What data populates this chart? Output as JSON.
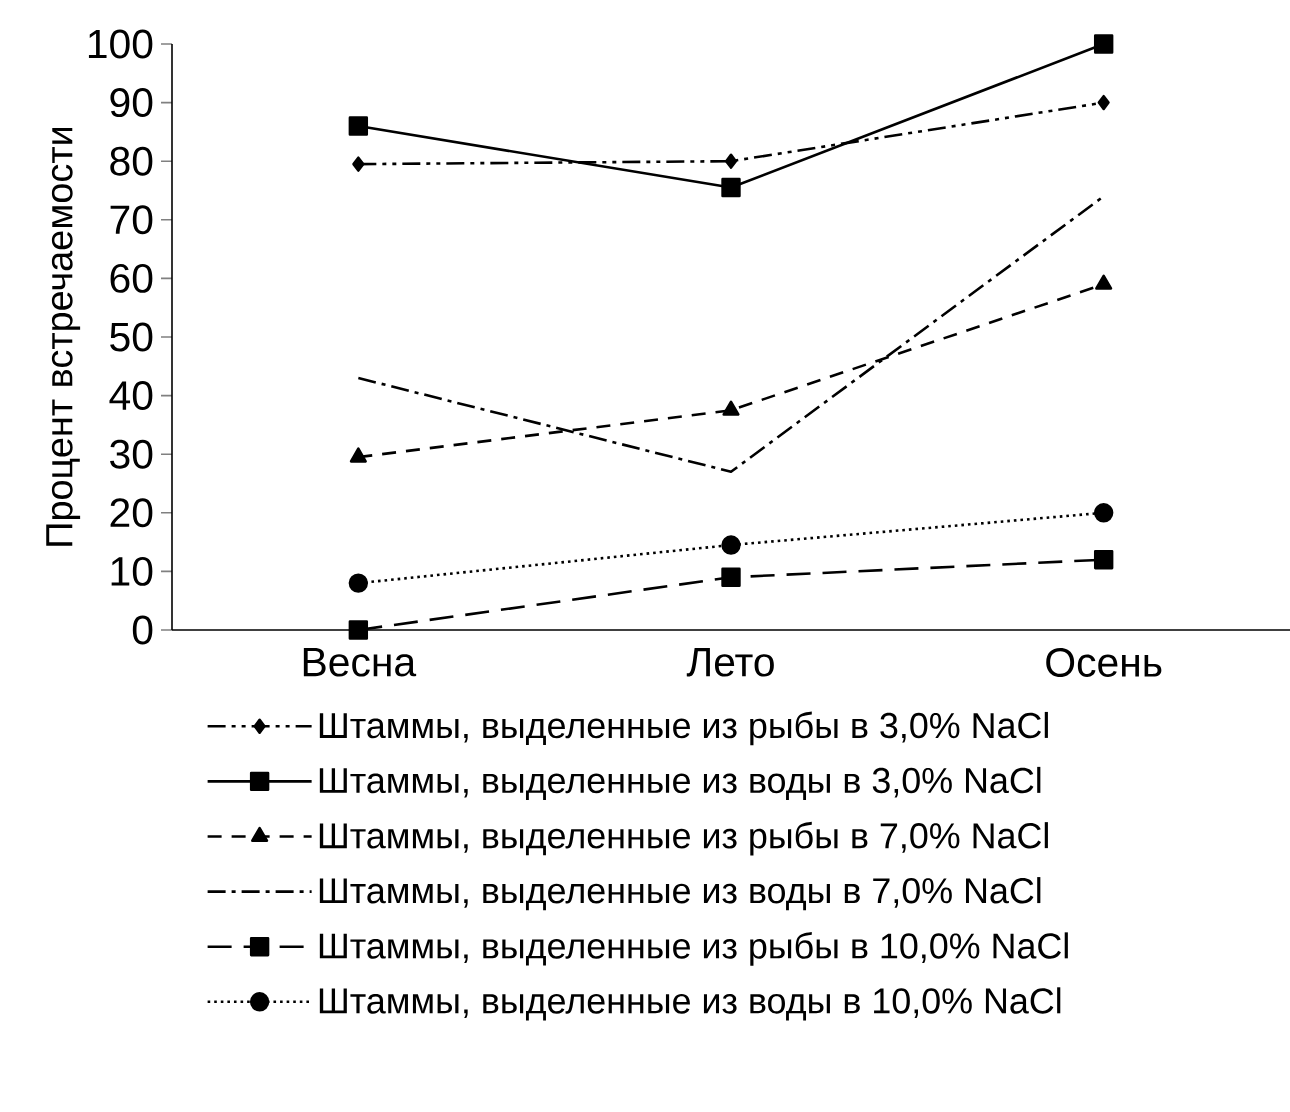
{
  "chart_data": {
    "type": "line",
    "ylabel": "Процент встречаемости",
    "categories": [
      "Весна",
      "Лето",
      "Осень"
    ],
    "ylim": [
      0,
      100
    ],
    "yticks": [
      0,
      10,
      20,
      30,
      40,
      50,
      60,
      70,
      80,
      90,
      100
    ],
    "legend": "bottom",
    "grid": false,
    "series": [
      {
        "name": "Штаммы, выделенные из рыбы в 3,0% NaCl",
        "color": "#000000",
        "marker": "diamond",
        "line_style": "dashdotdot",
        "values": [
          79.5,
          80,
          90
        ]
      },
      {
        "name": "Штаммы, выделенные из воды в 3,0% NaCl",
        "color": "#000000",
        "marker": "square",
        "line_style": "solid",
        "values": [
          86,
          75.5,
          100
        ]
      },
      {
        "name": "Штаммы, выделенные из рыбы в 7,0% NaCl",
        "color": "#000000",
        "marker": "triangle",
        "line_style": "dashed",
        "values": [
          29.5,
          37.5,
          59
        ]
      },
      {
        "name": "Штаммы, выделенные из воды в 7,0% NaCl",
        "color": "#000000",
        "marker": "none",
        "line_style": "dashdot",
        "values": [
          43,
          27,
          74
        ]
      },
      {
        "name": "Штаммы, выделенные из рыбы в 10,0% NaCl",
        "color": "#000000",
        "marker": "square",
        "line_style": "longdashed",
        "values": [
          0,
          9,
          12
        ]
      },
      {
        "name": "Штаммы, выделенные из воды в 10,0% NaCl",
        "color": "#000000",
        "marker": "circle",
        "line_style": "dotted",
        "values": [
          8,
          14.5,
          20
        ]
      }
    ]
  }
}
